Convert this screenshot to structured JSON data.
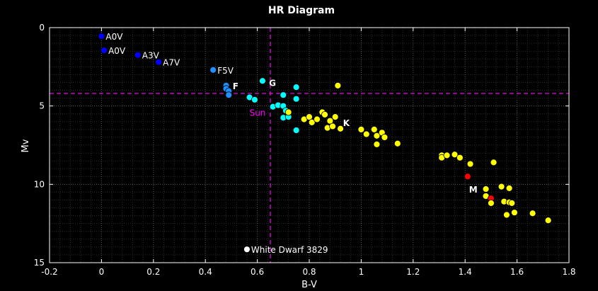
{
  "chart_data": {
    "type": "scatter",
    "title": "HR Diagram",
    "xlabel": "B-V",
    "ylabel": "Mv",
    "xlim": [
      -0.2,
      1.8
    ],
    "ylim": [
      15,
      0
    ],
    "y_inverted": true,
    "grid": "minor dotted",
    "background": "#000000",
    "xticks": [
      "-0.2",
      "0",
      "0.2",
      "0.4",
      "0.6",
      "0.8",
      "1",
      "1.2",
      "1.4",
      "1.6",
      "1.8"
    ],
    "yticks": [
      "0",
      "5",
      "10",
      "15"
    ],
    "reference_lines": {
      "x": 0.65,
      "y": 4.2,
      "color": "#ff00ff",
      "style": "dashed"
    },
    "stars": [
      {
        "x": 0.0,
        "y": 0.55,
        "color": "#0000ff",
        "label": "A0V"
      },
      {
        "x": 0.01,
        "y": 1.45,
        "color": "#0000ff",
        "label": "A0V"
      },
      {
        "x": 0.14,
        "y": 1.75,
        "color": "#0000ff",
        "label": "A3V"
      },
      {
        "x": 0.22,
        "y": 2.2,
        "color": "#0000ff",
        "label": "A7V"
      },
      {
        "x": 0.43,
        "y": 2.7,
        "color": "#1e90ff",
        "label": "F5V"
      },
      {
        "x": 0.48,
        "y": 3.7,
        "color": "#1e90ff"
      },
      {
        "x": 0.48,
        "y": 3.9,
        "color": "#1e90ff"
      },
      {
        "x": 0.49,
        "y": 4.05,
        "color": "#1e90ff"
      },
      {
        "x": 0.49,
        "y": 4.3,
        "color": "#1e90ff"
      },
      {
        "x": 0.57,
        "y": 4.45,
        "color": "#00ffff"
      },
      {
        "x": 0.59,
        "y": 4.6,
        "color": "#00ffff"
      },
      {
        "x": 0.62,
        "y": 3.4,
        "color": "#00ffff"
      },
      {
        "x": 0.66,
        "y": 5.05,
        "color": "#00ffff"
      },
      {
        "x": 0.68,
        "y": 4.95,
        "color": "#00ffff"
      },
      {
        "x": 0.7,
        "y": 4.3,
        "color": "#00ffff"
      },
      {
        "x": 0.7,
        "y": 5.0,
        "color": "#00ffff"
      },
      {
        "x": 0.71,
        "y": 5.3,
        "color": "#00ffff"
      },
      {
        "x": 0.7,
        "y": 5.75,
        "color": "#00ffff"
      },
      {
        "x": 0.72,
        "y": 5.7,
        "color": "#00ffff"
      },
      {
        "x": 0.75,
        "y": 3.8,
        "color": "#00ffff"
      },
      {
        "x": 0.75,
        "y": 4.55,
        "color": "#00ffff"
      },
      {
        "x": 0.75,
        "y": 6.55,
        "color": "#00ffff"
      },
      {
        "x": 0.72,
        "y": 5.4,
        "color": "#ffff00"
      },
      {
        "x": 0.78,
        "y": 5.85,
        "color": "#ffff00"
      },
      {
        "x": 0.8,
        "y": 5.7,
        "color": "#ffff00"
      },
      {
        "x": 0.81,
        "y": 6.05,
        "color": "#ffff00"
      },
      {
        "x": 0.83,
        "y": 5.85,
        "color": "#ffff00"
      },
      {
        "x": 0.85,
        "y": 5.4,
        "color": "#ffff00"
      },
      {
        "x": 0.86,
        "y": 5.55,
        "color": "#ffff00"
      },
      {
        "x": 0.87,
        "y": 6.4,
        "color": "#ffff00"
      },
      {
        "x": 0.88,
        "y": 5.95,
        "color": "#ffff00"
      },
      {
        "x": 0.89,
        "y": 6.3,
        "color": "#ffff00"
      },
      {
        "x": 0.9,
        "y": 5.7,
        "color": "#ffff00"
      },
      {
        "x": 0.91,
        "y": 3.7,
        "color": "#ffff00"
      },
      {
        "x": 0.92,
        "y": 6.45,
        "color": "#ffff00"
      },
      {
        "x": 1.0,
        "y": 6.5,
        "color": "#ffff00"
      },
      {
        "x": 1.02,
        "y": 6.8,
        "color": "#ffff00"
      },
      {
        "x": 1.05,
        "y": 6.5,
        "color": "#ffff00"
      },
      {
        "x": 1.06,
        "y": 6.9,
        "color": "#ffff00"
      },
      {
        "x": 1.06,
        "y": 7.45,
        "color": "#ffff00"
      },
      {
        "x": 1.08,
        "y": 6.7,
        "color": "#ffff00"
      },
      {
        "x": 1.09,
        "y": 7.0,
        "color": "#ffff00"
      },
      {
        "x": 1.14,
        "y": 7.4,
        "color": "#ffff00"
      },
      {
        "x": 1.31,
        "y": 8.15,
        "color": "#ffff00"
      },
      {
        "x": 1.31,
        "y": 8.3,
        "color": "#ffff00"
      },
      {
        "x": 1.33,
        "y": 8.15,
        "color": "#ffff00"
      },
      {
        "x": 1.36,
        "y": 8.1,
        "color": "#ffff00"
      },
      {
        "x": 1.38,
        "y": 8.3,
        "color": "#ffff00"
      },
      {
        "x": 1.42,
        "y": 8.7,
        "color": "#ffff00"
      },
      {
        "x": 1.51,
        "y": 8.6,
        "color": "#ffff00"
      },
      {
        "x": 1.41,
        "y": 9.5,
        "color": "#ff0000"
      },
      {
        "x": 1.48,
        "y": 10.3,
        "color": "#ffff00"
      },
      {
        "x": 1.48,
        "y": 10.75,
        "color": "#ffff00"
      },
      {
        "x": 1.5,
        "y": 10.9,
        "color": "#ff0000"
      },
      {
        "x": 1.5,
        "y": 11.2,
        "color": "#ffff00"
      },
      {
        "x": 1.54,
        "y": 10.15,
        "color": "#ffff00"
      },
      {
        "x": 1.55,
        "y": 11.1,
        "color": "#ffff00"
      },
      {
        "x": 1.56,
        "y": 11.95,
        "color": "#ffff00"
      },
      {
        "x": 1.57,
        "y": 10.25,
        "color": "#ffff00"
      },
      {
        "x": 1.57,
        "y": 11.15,
        "color": "#ffff00"
      },
      {
        "x": 1.58,
        "y": 11.2,
        "color": "#ffff00"
      },
      {
        "x": 1.59,
        "y": 11.8,
        "color": "#ffff00"
      },
      {
        "x": 1.66,
        "y": 11.85,
        "color": "#ffff00"
      },
      {
        "x": 1.72,
        "y": 12.3,
        "color": "#ffff00"
      },
      {
        "x": 0.56,
        "y": 14.15,
        "color": "#ffffff",
        "label": "White Dwarf 3829"
      }
    ],
    "annotations": [
      {
        "text": "F",
        "x": 0.505,
        "y": 3.75,
        "color": "#ffffff",
        "bold": true
      },
      {
        "text": "G",
        "x": 0.645,
        "y": 3.55,
        "color": "#ffffff",
        "bold": true
      },
      {
        "text": "K",
        "x": 0.93,
        "y": 6.1,
        "color": "#ffffff",
        "bold": true
      },
      {
        "text": "M",
        "x": 1.415,
        "y": 10.35,
        "color": "#ffffff",
        "bold": true
      },
      {
        "text": "Sun",
        "x": 0.57,
        "y": 5.45,
        "color": "#ff00ff",
        "bold": false
      }
    ]
  }
}
